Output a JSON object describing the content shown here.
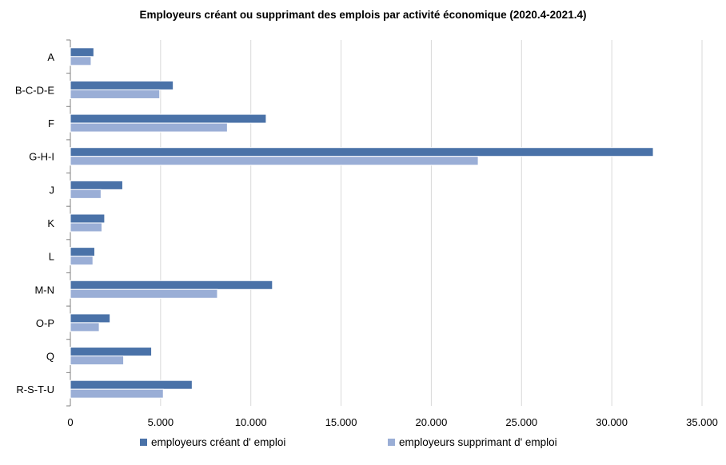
{
  "chart_data": {
    "type": "bar",
    "orientation": "horizontal",
    "title": "Employeurs créant ou supprimant des emplois par activité économique (2020.4-2021.4)",
    "categories": [
      "A",
      "B-C-D-E",
      "F",
      "G-H-I",
      "J",
      "K",
      "L",
      "M-N",
      "O-P",
      "Q",
      "R-S-T-U"
    ],
    "series": [
      {
        "name": "employeurs créant d' emploi",
        "color": "#4a72a8",
        "values": [
          1300,
          5700,
          10850,
          32300,
          2900,
          1900,
          1350,
          11200,
          2200,
          4500,
          6750
        ]
      },
      {
        "name": "employeurs supprimant d' emploi",
        "color": "#9aaed6",
        "values": [
          1150,
          4950,
          8700,
          22600,
          1700,
          1750,
          1250,
          8150,
          1600,
          2950,
          5150
        ]
      }
    ],
    "xlim": [
      0,
      35000
    ],
    "xticks": [
      0,
      5000,
      10000,
      15000,
      20000,
      25000,
      30000,
      35000
    ],
    "xtick_labels": [
      "0",
      "5.000",
      "10.000",
      "15.000",
      "20.000",
      "25.000",
      "30.000",
      "35.000"
    ],
    "grid": "vertical",
    "legend_position": "bottom"
  }
}
